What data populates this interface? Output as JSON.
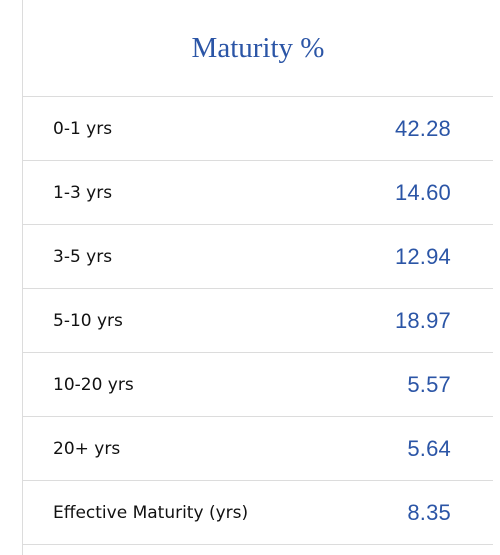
{
  "title": "Maturity %",
  "colors": {
    "accent": "#2b55a6",
    "text": "#111111",
    "divider": "#dcdcdc"
  },
  "rows": [
    {
      "label": "0-1 yrs",
      "value": "42.28"
    },
    {
      "label": "1-3 yrs",
      "value": "14.60"
    },
    {
      "label": "3-5 yrs",
      "value": "12.94"
    },
    {
      "label": "5-10 yrs",
      "value": "18.97"
    },
    {
      "label": "10-20 yrs",
      "value": "5.57"
    },
    {
      "label": "20+ yrs",
      "value": "5.64"
    },
    {
      "label": "Effective Maturity (yrs)",
      "value": "8.35"
    }
  ]
}
